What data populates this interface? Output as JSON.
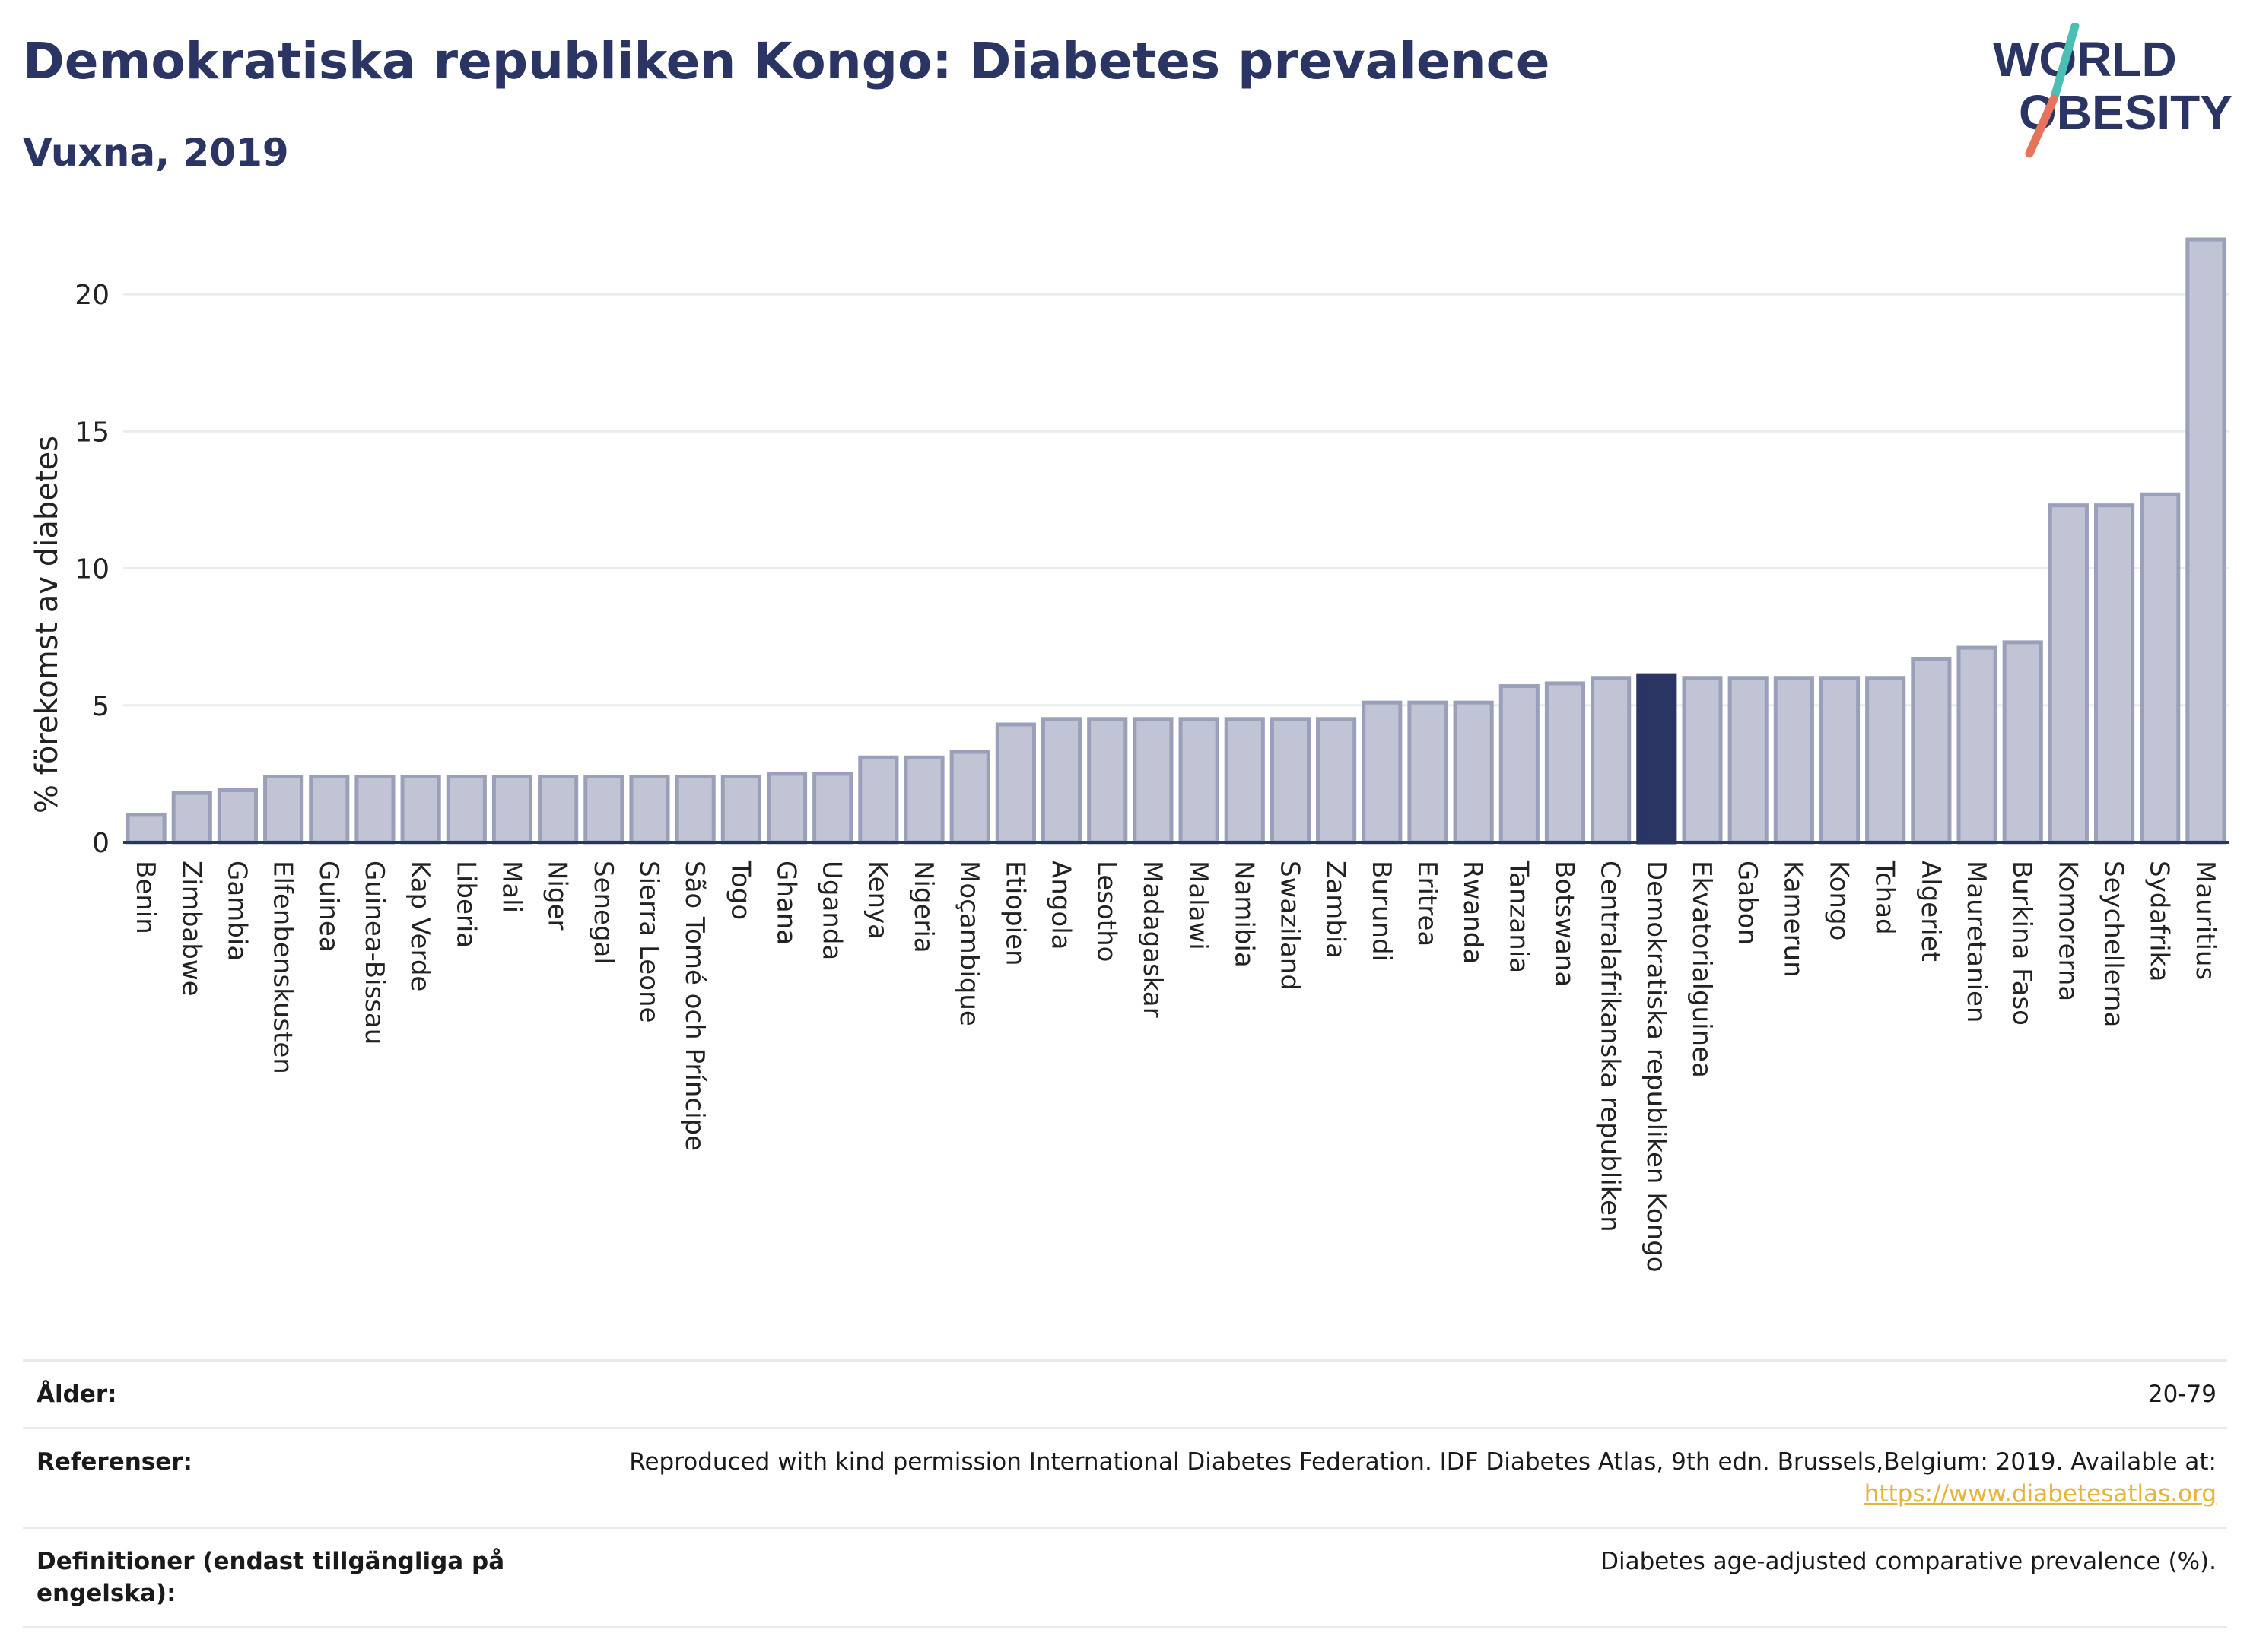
{
  "header": {
    "title": "Demokratiska republiken Kongo: Diabetes prevalence",
    "subtitle": "Vuxna, 2019"
  },
  "logo": {
    "line1": "WORLD",
    "line2": "OBESITY"
  },
  "colors": {
    "bar": "#c0c4d4",
    "bar_stroke": "#9aa0ba",
    "highlight": "#2b3563",
    "axis": "#2b3563",
    "grid": "#e9eced",
    "accent_teal": "#4bbfb4",
    "accent_coral": "#e8735c"
  },
  "chart_data": {
    "type": "bar",
    "ylabel": "% förekomst av diabetes",
    "ylim": [
      0,
      22
    ],
    "yticks": [
      0,
      5,
      10,
      15,
      20
    ],
    "grid": true,
    "highlight": "Demokratiska republiken Kongo",
    "categories": [
      "Benin",
      "Zimbabwe",
      "Gambia",
      "Elfenbenskusten",
      "Guinea",
      "Guinea-Bissau",
      "Kap Verde",
      "Liberia",
      "Mali",
      "Niger",
      "Senegal",
      "Sierra Leone",
      "São Tomé och Príncipe",
      "Togo",
      "Ghana",
      "Uganda",
      "Kenya",
      "Nigeria",
      "Moçambique",
      "Etiopien",
      "Angola",
      "Lesotho",
      "Madagaskar",
      "Malawi",
      "Namibia",
      "Swaziland",
      "Zambia",
      "Burundi",
      "Eritrea",
      "Rwanda",
      "Tanzania",
      "Botswana",
      "Centralafrikanska republiken",
      "Demokratiska republiken Kongo",
      "Ekvatorialguinea",
      "Gabon",
      "Kamerun",
      "Kongo",
      "Tchad",
      "Algeriet",
      "Mauretanien",
      "Burkina Faso",
      "Komorerna",
      "Seychellerna",
      "Sydafrika",
      "Mauritius"
    ],
    "values": [
      1.0,
      1.8,
      1.9,
      2.4,
      2.4,
      2.4,
      2.4,
      2.4,
      2.4,
      2.4,
      2.4,
      2.4,
      2.4,
      2.4,
      2.5,
      2.5,
      3.1,
      3.1,
      3.3,
      4.3,
      4.5,
      4.5,
      4.5,
      4.5,
      4.5,
      4.5,
      4.5,
      5.1,
      5.1,
      5.1,
      5.7,
      5.8,
      6.0,
      6.1,
      6.0,
      6.0,
      6.0,
      6.0,
      6.0,
      6.7,
      7.1,
      7.3,
      12.3,
      12.3,
      12.7,
      22.0
    ]
  },
  "footer": {
    "rows": [
      {
        "key": "Ålder:",
        "value": "20-79",
        "link": ""
      },
      {
        "key": "Referenser:",
        "value": "Reproduced with kind permission International Diabetes Federation. IDF Diabetes Atlas, 9th edn. Brussels,Belgium: 2019. Available at:",
        "link": "https://www.diabetesatlas.org"
      },
      {
        "key": "Definitioner (endast tillgängliga på engelska):",
        "value": "Diabetes age-adjusted comparative prevalence (%).",
        "link": ""
      }
    ]
  }
}
